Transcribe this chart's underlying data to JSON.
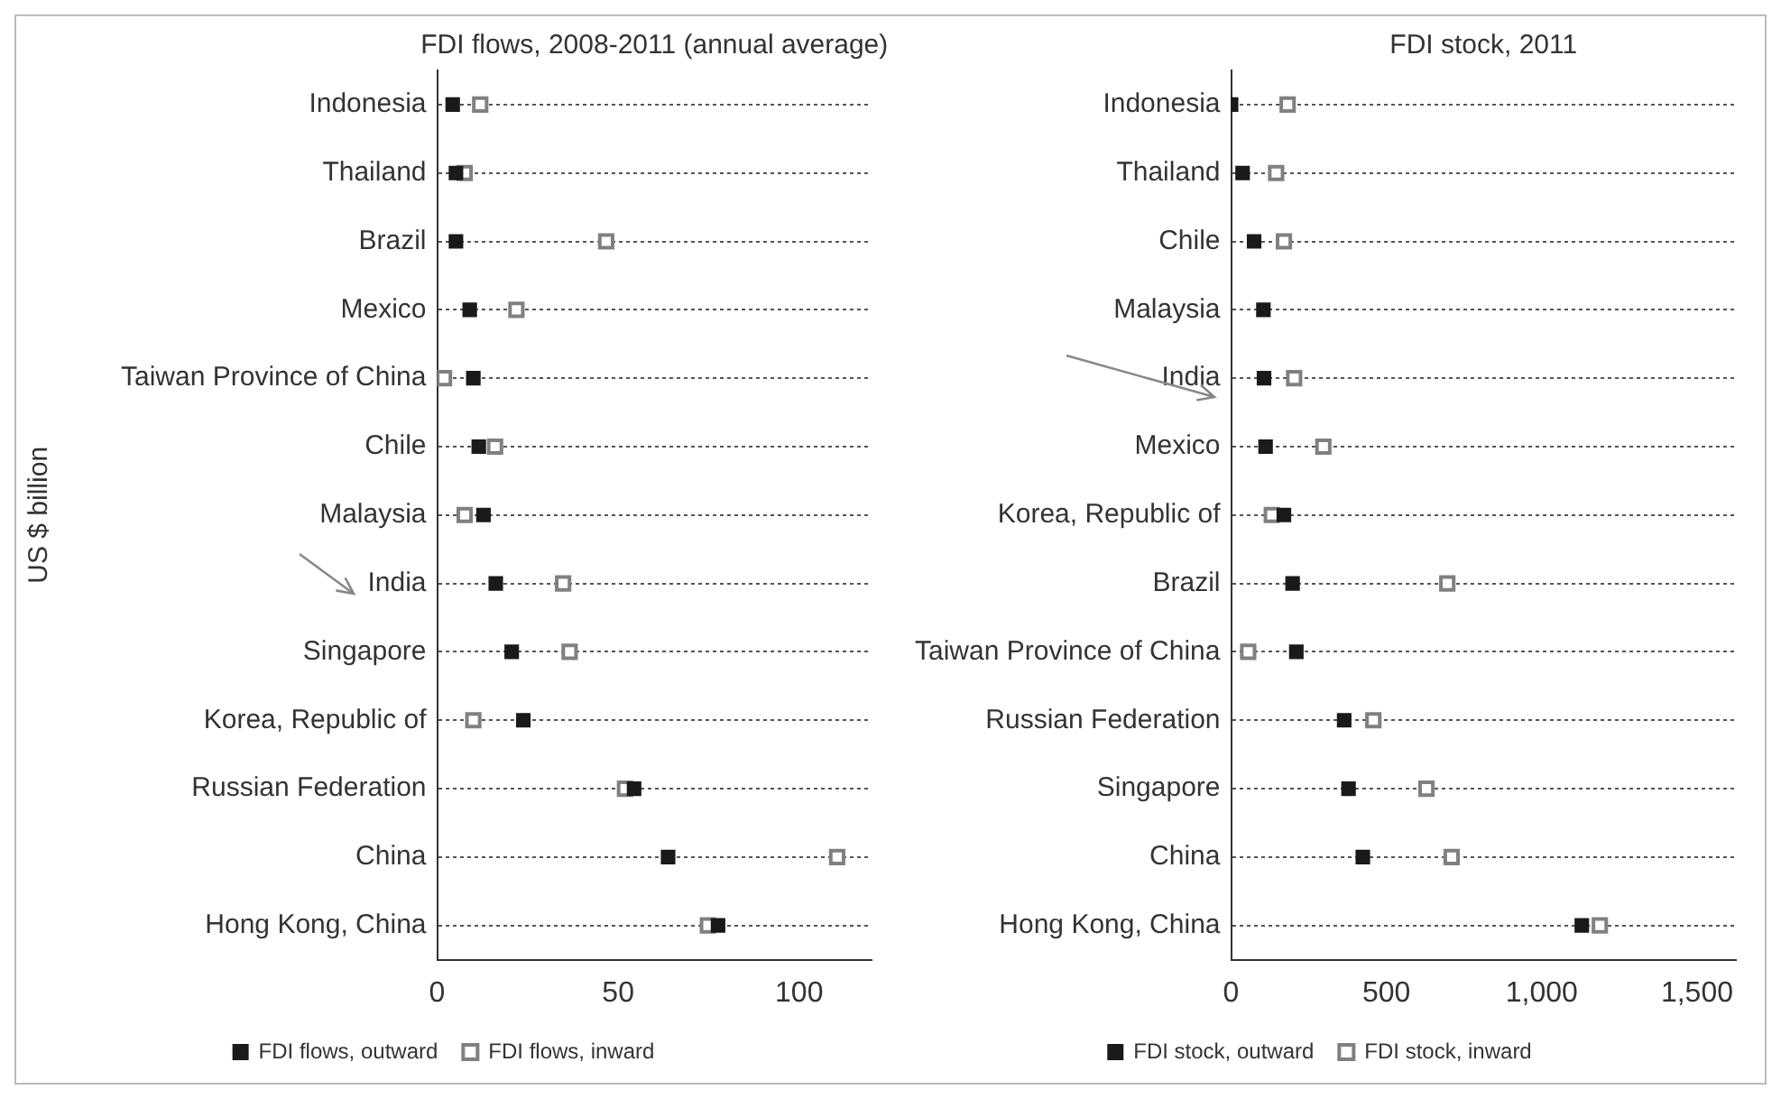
{
  "chart_data": [
    {
      "type": "scatter",
      "orientation": "horizontal",
      "title": "FDI flows, 2008-2011 (annual average)",
      "ylabel": "US $ billion",
      "categories": [
        "Indonesia",
        "Thailand",
        "Brazil",
        "Mexico",
        "Taiwan Province of China",
        "Chile",
        "Malaysia",
        "India",
        "Singapore",
        "Korea, Republic of",
        "Russian Federation",
        "China",
        "Hong Kong, China"
      ],
      "series": [
        {
          "name": "FDI flows, outward",
          "color": "#1a1a1a",
          "values": [
            4.3,
            5.2,
            5.2,
            9,
            10,
            11.5,
            12.8,
            16.2,
            20.6,
            23.8,
            54.4,
            63.8,
            77.6
          ]
        },
        {
          "name": "FDI flows, inward",
          "color": "#808080",
          "values": [
            11.9,
            7.6,
            46.7,
            21.9,
            1.9,
            16,
            7.6,
            34.8,
            36.6,
            10,
            51.9,
            110.5,
            74.8
          ]
        }
      ],
      "xlim": [
        0,
        120
      ],
      "xticks": [
        0,
        50,
        100
      ],
      "grid": "y",
      "line_style": "dotted",
      "marker": "square",
      "legend": "bottom"
    },
    {
      "type": "scatter",
      "orientation": "horizontal",
      "title": "FDI stock, 2011",
      "categories": [
        "Indonesia",
        "Thailand",
        "Chile",
        "Malaysia",
        "India",
        "Mexico",
        "Korea, Republic of",
        "Brazil",
        "Taiwan Province of China",
        "Russian Federation",
        "Singapore",
        "China",
        "Hong Kong, China"
      ],
      "series": [
        {
          "name": "FDI stock, outward",
          "color": "#1a1a1a",
          "values": [
            0,
            37,
            74,
            104,
            106,
            111,
            170,
            198,
            210,
            364,
            378,
            424,
            1129
          ]
        },
        {
          "name": "FDI stock, inward",
          "color": "#808080",
          "values": [
            182,
            145,
            170,
            null,
            203,
            297,
            131,
            696,
            55,
            458,
            629,
            710,
            1187
          ]
        }
      ],
      "xlim": [
        0,
        1625
      ],
      "xticks": [
        0,
        500,
        {
          "value": 1000,
          "label": "1,000"
        },
        {
          "value": 1500,
          "label": "1,500"
        }
      ],
      "grid": "y",
      "line_style": "dotted",
      "marker": "square",
      "legend": "bottom"
    }
  ]
}
